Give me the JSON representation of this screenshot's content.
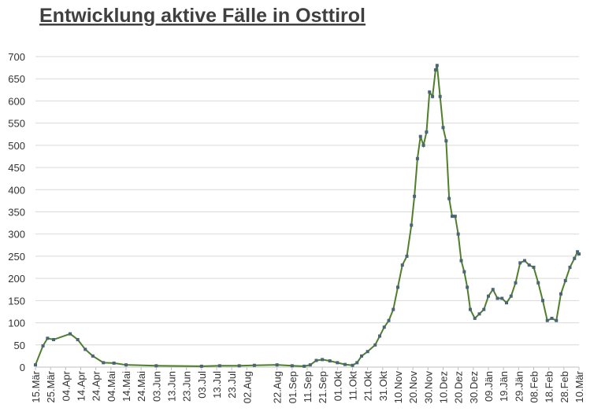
{
  "chart_data": {
    "type": "line",
    "title": "Entwicklung aktive Fälle in Osttirol",
    "x": [
      0,
      5,
      8,
      12,
      23,
      28,
      33,
      38,
      45,
      52,
      60,
      80,
      110,
      122,
      135,
      145,
      160,
      170,
      178,
      182,
      186,
      190,
      195,
      200,
      205,
      210,
      213,
      216,
      220,
      225,
      228,
      231,
      234,
      237,
      240,
      243,
      246,
      249,
      251,
      253,
      255,
      257,
      259,
      261,
      263,
      265,
      266,
      268,
      270,
      272,
      274,
      276,
      278,
      280,
      282,
      284,
      286,
      288,
      291,
      294,
      297,
      300,
      303,
      306,
      309,
      312,
      315,
      318,
      321,
      324,
      327,
      330,
      333,
      336,
      339,
      342,
      345,
      348,
      351,
      354,
      357,
      359,
      360
    ],
    "values": [
      5,
      48,
      65,
      62,
      75,
      62,
      40,
      25,
      10,
      9,
      5,
      3,
      2,
      3,
      3,
      4,
      5,
      3,
      2,
      5,
      15,
      17,
      14,
      10,
      6,
      4,
      10,
      25,
      35,
      50,
      70,
      90,
      105,
      130,
      180,
      230,
      250,
      320,
      385,
      470,
      520,
      500,
      530,
      620,
      610,
      670,
      680,
      610,
      540,
      510,
      380,
      340,
      340,
      300,
      240,
      215,
      180,
      130,
      110,
      120,
      130,
      160,
      175,
      155,
      155,
      145,
      160,
      190,
      235,
      240,
      230,
      225,
      190,
      150,
      105,
      110,
      105,
      165,
      195,
      225,
      245,
      260,
      255
    ],
    "color": "#4f7f2a",
    "marker_color": "#4a6478",
    "xlim": [
      0,
      360
    ],
    "xticks": [
      {
        "value": 0,
        "label": "15.Mär"
      },
      {
        "value": 10,
        "label": "25.Mär"
      },
      {
        "value": 20,
        "label": "04.Apr"
      },
      {
        "value": 30,
        "label": "14.Apr"
      },
      {
        "value": 40,
        "label": "24.Apr"
      },
      {
        "value": 50,
        "label": "04.Mai"
      },
      {
        "value": 60,
        "label": "14.Mai"
      },
      {
        "value": 70,
        "label": "24.Mai"
      },
      {
        "value": 80,
        "label": "03.Jun"
      },
      {
        "value": 90,
        "label": "13.Jun"
      },
      {
        "value": 100,
        "label": "23.Jun"
      },
      {
        "value": 110,
        "label": "03.Jul"
      },
      {
        "value": 120,
        "label": "13.Jul"
      },
      {
        "value": 130,
        "label": "23.Jul"
      },
      {
        "value": 140,
        "label": "02.Aug"
      },
      {
        "value": 160,
        "label": "22.Aug"
      },
      {
        "value": 170,
        "label": "01.Sep"
      },
      {
        "value": 180,
        "label": "11.Sep"
      },
      {
        "value": 190,
        "label": "21.Sep"
      },
      {
        "value": 200,
        "label": "01.Okt"
      },
      {
        "value": 210,
        "label": "11.Okt"
      },
      {
        "value": 220,
        "label": "21.Okt"
      },
      {
        "value": 230,
        "label": "31.Okt"
      },
      {
        "value": 240,
        "label": "10.Nov"
      },
      {
        "value": 250,
        "label": "20.Nov"
      },
      {
        "value": 260,
        "label": "30.Nov"
      },
      {
        "value": 270,
        "label": "10.Dez"
      },
      {
        "value": 280,
        "label": "20.Dez"
      },
      {
        "value": 290,
        "label": "30.Dez"
      },
      {
        "value": 300,
        "label": "09.Jän"
      },
      {
        "value": 310,
        "label": "19.Jän"
      },
      {
        "value": 320,
        "label": "29.Jän"
      },
      {
        "value": 330,
        "label": "08.Feb"
      },
      {
        "value": 340,
        "label": "18.Feb"
      },
      {
        "value": 350,
        "label": "28.Feb"
      },
      {
        "value": 360,
        "label": "10.Mär"
      }
    ],
    "ylim": [
      0,
      700
    ],
    "yticks": [
      0,
      50,
      100,
      150,
      200,
      250,
      300,
      350,
      400,
      450,
      500,
      550,
      600,
      650,
      700
    ],
    "grid": true
  }
}
